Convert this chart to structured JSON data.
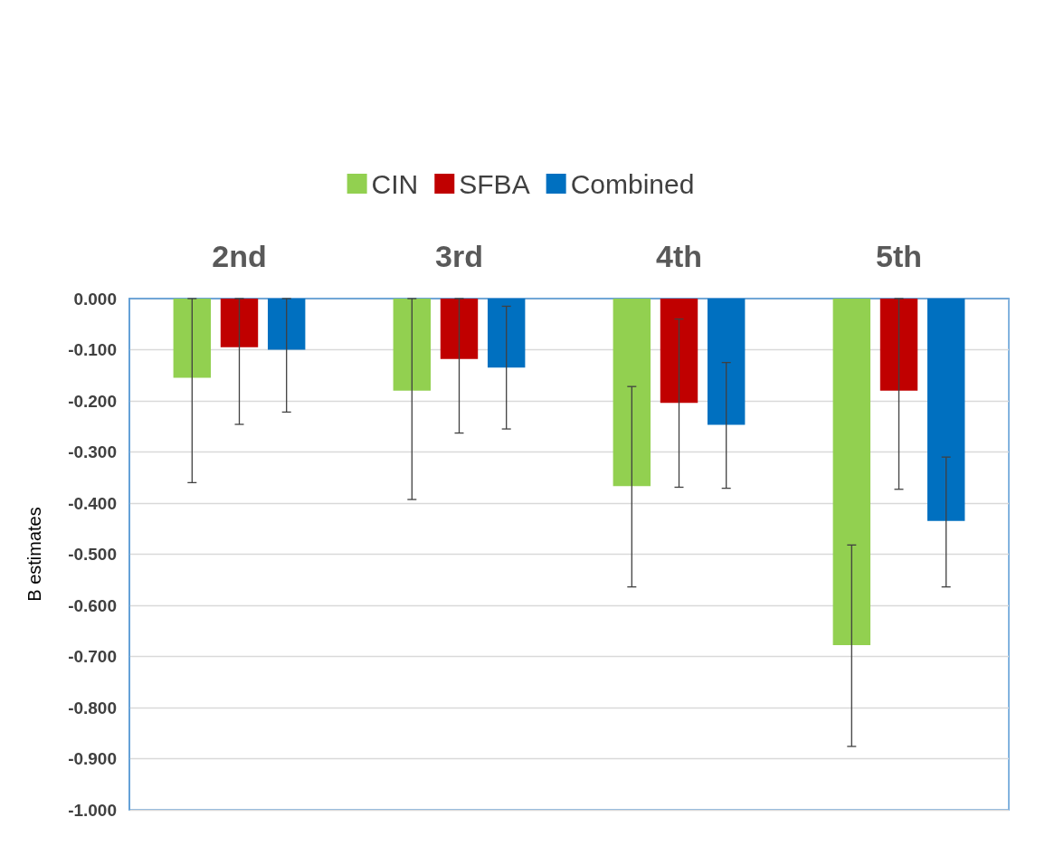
{
  "chart_data": {
    "type": "bar",
    "ylabel": "B estimates",
    "categories": [
      "2nd",
      "3rd",
      "4th",
      "5th"
    ],
    "series": [
      {
        "name": "CIN",
        "color": "#92d050",
        "values": [
          -0.155,
          -0.18,
          -0.367,
          -0.678
        ],
        "errors": [
          [
            -0.36,
            0.0
          ],
          [
            -0.393,
            0.0
          ],
          [
            -0.564,
            -0.172
          ],
          [
            -0.876,
            -0.482
          ]
        ]
      },
      {
        "name": "SFBA",
        "color": "#c00000",
        "values": [
          -0.095,
          -0.118,
          -0.204,
          -0.18
        ],
        "errors": [
          [
            -0.246,
            0.0
          ],
          [
            -0.263,
            0.0
          ],
          [
            -0.369,
            -0.04
          ],
          [
            -0.373,
            0.0
          ]
        ]
      },
      {
        "name": "Combined",
        "color": "#0070c0",
        "values": [
          -0.1,
          -0.135,
          -0.247,
          -0.435
        ],
        "errors": [
          [
            -0.222,
            0.0
          ],
          [
            -0.255,
            -0.015
          ],
          [
            -0.371,
            -0.125
          ],
          [
            -0.564,
            -0.31
          ]
        ]
      }
    ],
    "ylim": [
      -1,
      0
    ],
    "yticks": [
      {
        "value": 0,
        "label": "0.000"
      },
      {
        "value": -0.1,
        "label": "-0.100"
      },
      {
        "value": -0.2,
        "label": "-0.200"
      },
      {
        "value": -0.3,
        "label": "-0.300"
      },
      {
        "value": -0.4,
        "label": "-0.400"
      },
      {
        "value": -0.5,
        "label": "-0.500"
      },
      {
        "value": -0.6,
        "label": "-0.600"
      },
      {
        "value": -0.7,
        "label": "-0.700"
      },
      {
        "value": -0.8,
        "label": "-0.800"
      },
      {
        "value": -0.9,
        "label": "-0.900"
      },
      {
        "value": -1,
        "label": "-1.000"
      }
    ],
    "grid": "y",
    "legend": "top"
  }
}
